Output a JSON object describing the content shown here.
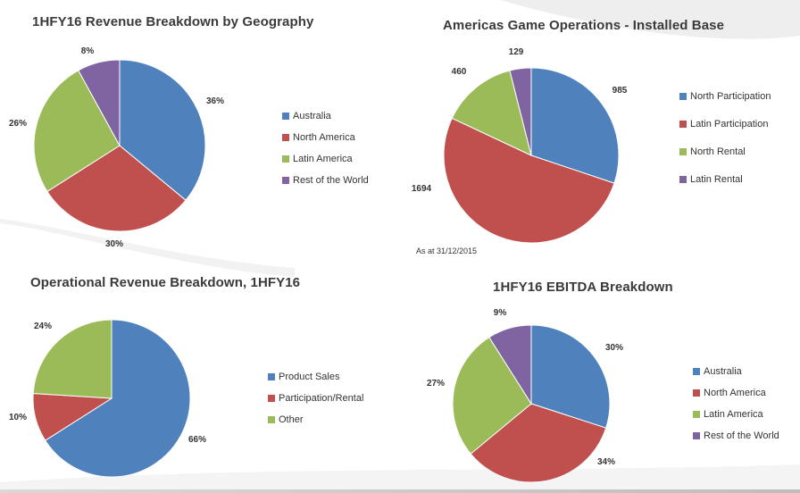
{
  "colors": {
    "blue": "#4f81bd",
    "red": "#c0504d",
    "green": "#9bbb59",
    "purple": "#8064a2"
  },
  "chart_data": [
    {
      "type": "pie",
      "title": "1HFY16 Revenue Breakdown by Geography",
      "categories": [
        "Australia",
        "North America",
        "Latin America",
        "Rest of the World"
      ],
      "values": [
        36,
        30,
        26,
        8
      ],
      "labels": [
        "36%",
        "30%",
        "26%",
        "8%"
      ],
      "legend": "right"
    },
    {
      "type": "pie",
      "title": "Americas Game Operations - Installed Base",
      "categories": [
        "North Participation",
        "Latin Participation",
        "North Rental",
        "Latin Rental"
      ],
      "values": [
        985,
        1694,
        460,
        129
      ],
      "labels": [
        "985",
        "1694",
        "460",
        "129"
      ],
      "note": "As at 31/12/2015",
      "legend": "right"
    },
    {
      "type": "pie",
      "title": "Operational Revenue Breakdown, 1HFY16",
      "categories": [
        "Product Sales",
        "Participation/Rental",
        "Other"
      ],
      "values": [
        66,
        10,
        24
      ],
      "labels": [
        "66%",
        "10%",
        "24%"
      ],
      "legend": "right"
    },
    {
      "type": "pie",
      "title": "1HFY16 EBITDA Breakdown",
      "categories": [
        "Australia",
        "North America",
        "Latin America",
        "Rest of the World"
      ],
      "values": [
        30,
        34,
        27,
        9
      ],
      "labels": [
        "30%",
        "34%",
        "27%",
        "9%"
      ],
      "legend": "right"
    }
  ]
}
